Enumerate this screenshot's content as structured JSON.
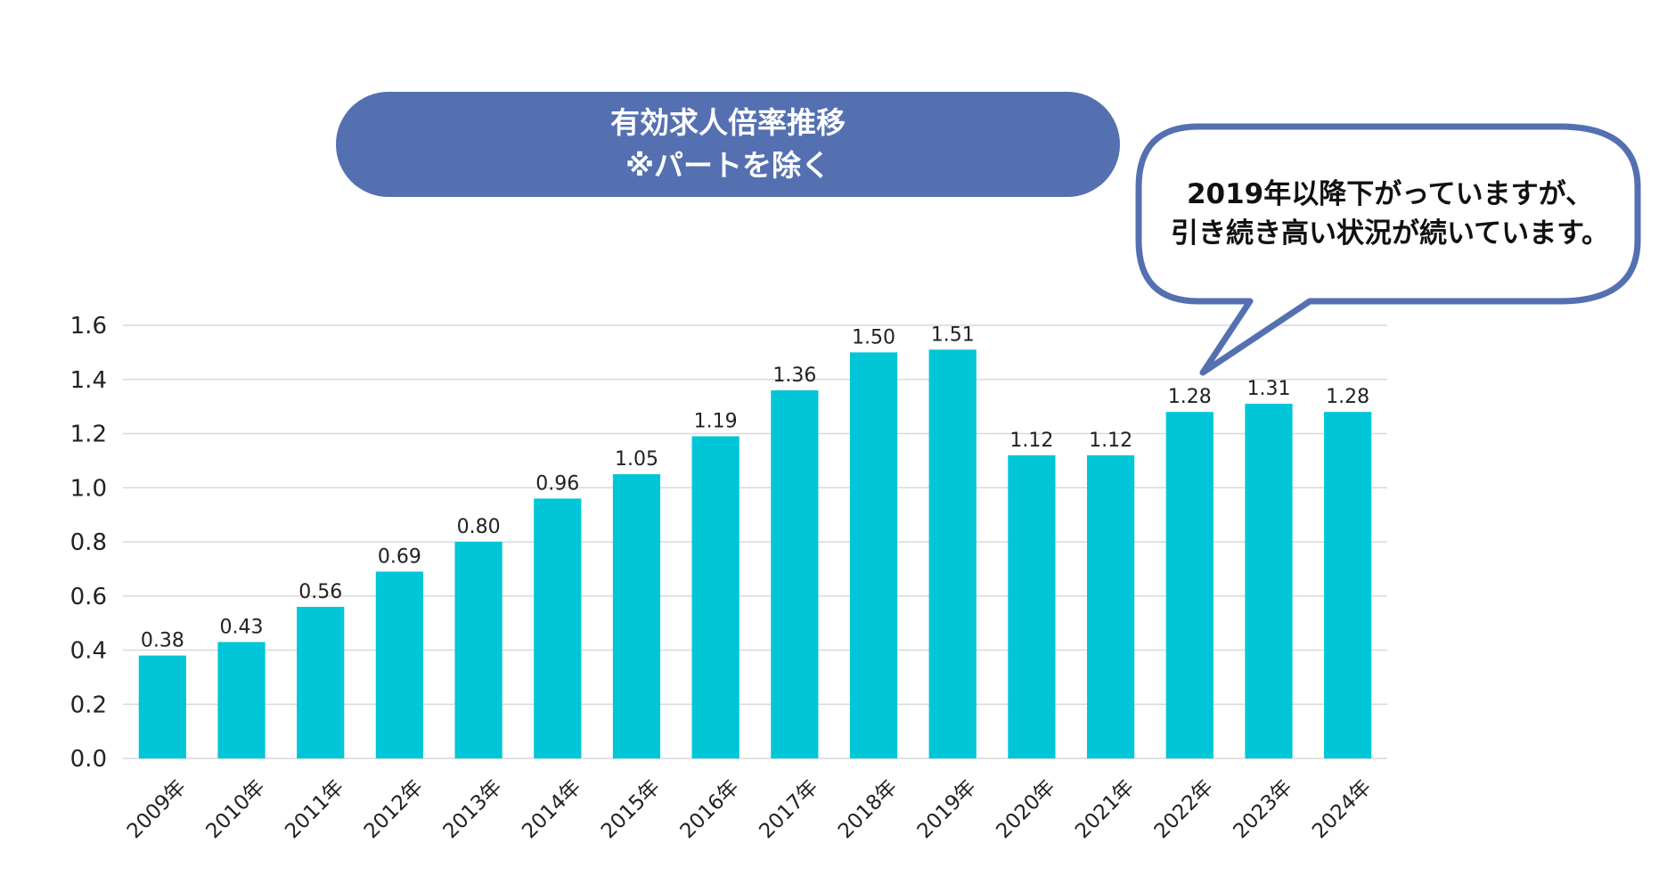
{
  "chart_data": {
    "type": "bar",
    "title": [
      "有効求人倍率推移",
      "※パートを除く"
    ],
    "categories": [
      "2009年",
      "2010年",
      "2011年",
      "2012年",
      "2013年",
      "2014年",
      "2015年",
      "2016年",
      "2017年",
      "2018年",
      "2019年",
      "2020年",
      "2021年",
      "2022年",
      "2023年",
      "2024年"
    ],
    "values": [
      0.38,
      0.43,
      0.56,
      0.69,
      0.8,
      0.96,
      1.05,
      1.19,
      1.36,
      1.5,
      1.51,
      1.12,
      1.12,
      1.28,
      1.31,
      1.28
    ],
    "value_labels": [
      "0.38",
      "0.43",
      "0.56",
      "0.69",
      "0.80",
      "0.96",
      "1.05",
      "1.19",
      "1.36",
      "1.50",
      "1.51",
      "1.12",
      "1.12",
      "1.28",
      "1.31",
      "1.28"
    ],
    "ylim": [
      0,
      1.6
    ],
    "yticks": [
      "0.0",
      "0.2",
      "0.4",
      "0.6",
      "0.8",
      "1.0",
      "1.2",
      "1.4",
      "1.6"
    ],
    "xlabel": "",
    "ylabel": "",
    "grid": true,
    "legend": "none",
    "bar_color": "#00c6d8",
    "annotation": [
      "2019年以降下がっていますが、",
      "引き続き高い状況が続いています。"
    ]
  },
  "colors": {
    "title_bg": "#5470b1",
    "title_text": "#ffffff",
    "callout_border": "#5470b1",
    "gridline": "#d9d9d9",
    "axis_text": "#222222"
  }
}
